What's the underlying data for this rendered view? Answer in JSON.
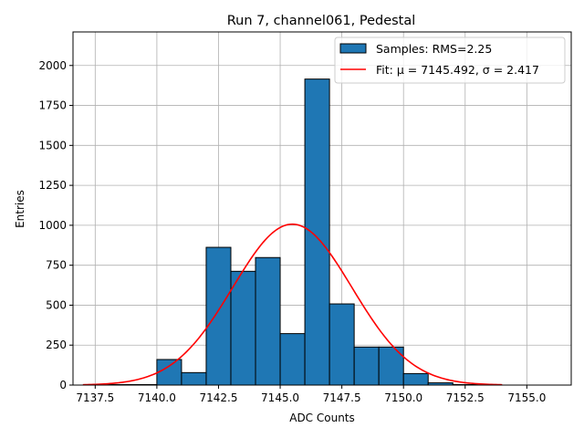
{
  "chart_data": {
    "type": "bar",
    "title": "Run 7, channel061, Pedestal",
    "xlabel": "ADC Counts",
    "ylabel": "Entries",
    "xlim": [
      7136.6,
      7156.8
    ],
    "ylim": [
      0,
      2210
    ],
    "x_ticks": [
      7137.5,
      7140.0,
      7142.5,
      7145.0,
      7147.5,
      7150.0,
      7152.5,
      7155.0
    ],
    "x_tick_labels": [
      "7137.5",
      "7140.0",
      "7142.5",
      "7145.0",
      "7147.5",
      "7150.0",
      "7152.5",
      "7155.0"
    ],
    "y_ticks": [
      0,
      250,
      500,
      750,
      1000,
      1250,
      1500,
      1750,
      2000
    ],
    "y_tick_labels": [
      "0",
      "250",
      "500",
      "750",
      "1000",
      "1250",
      "1500",
      "1750",
      "2000"
    ],
    "grid": true,
    "legend_position": "top-right",
    "histogram": {
      "name": "Samples: RMS=2.25",
      "color": "#1f77b4",
      "edge_color": "#000000",
      "bins": [
        {
          "x0": 7137.0,
          "x1": 7138.0,
          "count": 0
        },
        {
          "x0": 7138.0,
          "x1": 7139.0,
          "count": 3
        },
        {
          "x0": 7139.0,
          "x1": 7140.0,
          "count": 3
        },
        {
          "x0": 7140.0,
          "x1": 7141.0,
          "count": 160
        },
        {
          "x0": 7141.0,
          "x1": 7142.0,
          "count": 78
        },
        {
          "x0": 7142.0,
          "x1": 7143.0,
          "count": 862
        },
        {
          "x0": 7143.0,
          "x1": 7144.0,
          "count": 712
        },
        {
          "x0": 7144.0,
          "x1": 7145.0,
          "count": 798
        },
        {
          "x0": 7145.0,
          "x1": 7146.0,
          "count": 322
        },
        {
          "x0": 7146.0,
          "x1": 7147.0,
          "count": 1915
        },
        {
          "x0": 7147.0,
          "x1": 7148.0,
          "count": 508
        },
        {
          "x0": 7148.0,
          "x1": 7149.0,
          "count": 238
        },
        {
          "x0": 7149.0,
          "x1": 7150.0,
          "count": 238
        },
        {
          "x0": 7150.0,
          "x1": 7151.0,
          "count": 72
        },
        {
          "x0": 7151.0,
          "x1": 7152.0,
          "count": 14
        },
        {
          "x0": 7152.0,
          "x1": 7153.0,
          "count": 3
        },
        {
          "x0": 7153.0,
          "x1": 7154.0,
          "count": 0
        }
      ]
    },
    "fit": {
      "name": "Fit: μ = 7145.492, σ = 2.417",
      "color": "#ff0000",
      "mu": 7145.492,
      "sigma": 2.417,
      "amplitude": 1007,
      "x_range": [
        7137.0,
        7154.0
      ]
    }
  }
}
